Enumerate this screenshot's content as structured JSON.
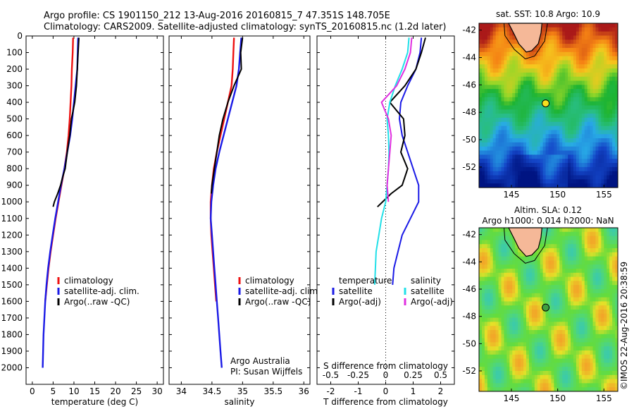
{
  "header": {
    "line1": "Argo profile: CS 1901150_212 13-Aug-2016 20160815_7 47.351S 148.705E",
    "line2": "Climatology: CARS2009. Satellite-adjusted climatology: synTS_20160815.nc (1.2d later)"
  },
  "colors": {
    "red": "#ee1111",
    "blue": "#1a1ae6",
    "black": "#000000",
    "cyan": "#22e0e8",
    "magenta": "#e030e0",
    "land": "#f5b898"
  },
  "chart_data": [
    {
      "type": "line",
      "name": "temperature",
      "xlabel": "temperature (deg C)",
      "ylabel": "",
      "xlim": [
        -1.5,
        31.5
      ],
      "ylim": [
        0,
        2100
      ],
      "xticks": [
        "0",
        "5",
        "10",
        "15",
        "20",
        "25",
        "30"
      ],
      "yticks": [
        "0",
        "100",
        "200",
        "300",
        "400",
        "500",
        "600",
        "700",
        "800",
        "900",
        "1000",
        "1100",
        "1200",
        "1300",
        "1400",
        "1500",
        "1600",
        "1700",
        "1800",
        "1900",
        "2000"
      ],
      "legend": [
        "climatology",
        "satellite-adj. clim.",
        "Argo(..raw -QC)"
      ],
      "series": [
        {
          "key": "climatology",
          "color": "red",
          "x": [
            9.8,
            9.7,
            9.5,
            9.4,
            9.2,
            9.0,
            8.7,
            8.3,
            7.7,
            7.0,
            6.3,
            5.6,
            5.0,
            4.4,
            3.9,
            3.5,
            3.1
          ],
          "y": [
            10,
            100,
            200,
            300,
            400,
            500,
            600,
            700,
            800,
            900,
            1000,
            1100,
            1200,
            1300,
            1400,
            1500,
            1600
          ]
        },
        {
          "key": "satellite",
          "color": "blue",
          "x": [
            11.0,
            10.9,
            10.8,
            10.4,
            10.0,
            9.6,
            9.1,
            8.4,
            7.7,
            6.9,
            6.2,
            5.5,
            4.9,
            4.3,
            3.8,
            3.4,
            3.1,
            2.9,
            2.7,
            2.6,
            2.5
          ],
          "y": [
            10,
            100,
            200,
            300,
            400,
            500,
            600,
            700,
            800,
            900,
            1000,
            1100,
            1200,
            1300,
            1400,
            1500,
            1600,
            1700,
            1800,
            1900,
            2000
          ]
        },
        {
          "key": "argo",
          "color": "black",
          "x": [
            11.2,
            11.0,
            10.8,
            10.6,
            10.2,
            9.8,
            9.4,
            9.0,
            8.4,
            7.9,
            7.3,
            6.8,
            6.1,
            5.3,
            5.0
          ],
          "y": [
            10,
            100,
            200,
            300,
            400,
            450,
            500,
            600,
            700,
            800,
            850,
            900,
            950,
            1000,
            1030
          ]
        }
      ]
    },
    {
      "type": "line",
      "name": "salinity",
      "xlabel": "salinity",
      "ylabel": "",
      "xlim": [
        33.8,
        36.1
      ],
      "ylim": [
        0,
        2100
      ],
      "xticks": [
        "34",
        "34.5",
        "35",
        "35.5",
        "36"
      ],
      "legend": [
        "climatology",
        "satellite-adj. clim.",
        "Argo(..raw -QC)"
      ],
      "annotation": [
        "Argo Australia",
        "PI: Susan Wijffels"
      ],
      "series": [
        {
          "key": "climatology",
          "color": "red",
          "x": [
            34.86,
            34.85,
            34.84,
            34.82,
            34.76,
            34.7,
            34.64,
            34.58,
            34.53,
            34.5,
            34.48,
            34.48,
            34.49,
            34.51,
            34.53,
            34.55,
            34.57
          ],
          "y": [
            10,
            100,
            200,
            300,
            400,
            500,
            600,
            700,
            800,
            900,
            1000,
            1100,
            1200,
            1300,
            1400,
            1500,
            1600
          ]
        },
        {
          "key": "satellite",
          "color": "blue",
          "x": [
            34.98,
            34.96,
            34.94,
            34.9,
            34.83,
            34.76,
            34.69,
            34.62,
            34.56,
            34.52,
            34.49,
            34.48,
            34.5,
            34.52,
            34.54,
            34.56,
            34.58,
            34.6,
            34.62,
            34.64,
            34.66
          ],
          "y": [
            10,
            100,
            200,
            300,
            400,
            500,
            600,
            700,
            800,
            900,
            1000,
            1100,
            1200,
            1300,
            1400,
            1500,
            1600,
            1700,
            1800,
            1900,
            2000
          ]
        },
        {
          "key": "argo",
          "color": "black",
          "x": [
            35.0,
            34.97,
            34.98,
            34.86,
            34.76,
            34.72,
            34.68,
            34.62,
            34.58,
            34.54,
            34.52,
            34.5,
            34.49
          ],
          "y": [
            10,
            100,
            200,
            300,
            400,
            450,
            500,
            600,
            700,
            800,
            850,
            900,
            950
          ]
        }
      ]
    },
    {
      "type": "line",
      "name": "difference",
      "xlabel": "T difference from climatology",
      "xlabel2": "S difference from climatology",
      "xlim": [
        -2.5,
        2.5
      ],
      "ylim": [
        0,
        2100
      ],
      "xticks": [
        "-2",
        "-1",
        "0",
        "1",
        "2"
      ],
      "xticks2": [
        "-0.5",
        "-0.25",
        "0",
        "0.25",
        "0.5"
      ],
      "legend_headers": [
        "temperature",
        "salinity"
      ],
      "legend": [
        "satellite",
        "Argo(-adj)",
        "satellite",
        "Argo(-adj)"
      ],
      "series": [
        {
          "key": "t_sat",
          "color": "blue",
          "x": [
            1.3,
            1.25,
            1.1,
            0.8,
            0.55,
            0.5,
            0.6,
            0.8,
            1.0,
            1.2,
            1.2,
            0.9,
            0.6,
            0.45,
            0.3,
            0.25
          ],
          "y": [
            10,
            100,
            200,
            300,
            400,
            500,
            600,
            700,
            800,
            900,
            1000,
            1100,
            1200,
            1300,
            1400,
            1500
          ]
        },
        {
          "key": "t_argo",
          "color": "black",
          "x": [
            1.45,
            1.3,
            1.1,
            0.7,
            0.15,
            0.4,
            0.65,
            0.7,
            0.55,
            0.8,
            0.7,
            0.6,
            0.2,
            -0.3
          ],
          "y": [
            10,
            100,
            200,
            300,
            400,
            450,
            500,
            600,
            700,
            800,
            850,
            900,
            950,
            1030
          ]
        },
        {
          "key": "s_sat",
          "color": "cyan",
          "x": [
            0.85,
            0.8,
            0.6,
            0.35,
            0.15,
            0.05,
            0.1,
            0.12,
            0.1,
            0.05,
            0.0,
            -0.15,
            -0.25,
            -0.35,
            -0.4
          ],
          "y": [
            10,
            100,
            200,
            300,
            400,
            500,
            600,
            700,
            800,
            900,
            1000,
            1100,
            1200,
            1300,
            1500
          ]
        },
        {
          "key": "s_argo",
          "color": "magenta",
          "x": [
            0.95,
            0.9,
            0.7,
            0.4,
            -0.15,
            0.1,
            0.2,
            0.15,
            0.1,
            0.05,
            0.1
          ],
          "y": [
            10,
            100,
            200,
            300,
            400,
            500,
            600,
            700,
            800,
            900,
            1000
          ]
        }
      ]
    },
    {
      "type": "heatmap",
      "name": "sst_map",
      "title": "sat. SST: 10.8 Argo: 10.9",
      "xlim": [
        141.5,
        156.5
      ],
      "ylim": [
        -53.5,
        -41.5
      ],
      "xticks": [
        "145",
        "150",
        "155"
      ],
      "yticks": [
        "-42",
        "-44",
        "-46",
        "-48",
        "-50",
        "-52"
      ],
      "marker": {
        "lon": 148.7,
        "lat": -47.35
      }
    },
    {
      "type": "heatmap",
      "name": "sla_map",
      "title": "Altim. SLA: 0.12",
      "subtitle": "Argo h1000: 0.014 h2000: NaN",
      "xlim": [
        141.5,
        156.5
      ],
      "ylim": [
        -53.5,
        -41.5
      ],
      "xticks": [
        "145",
        "150",
        "155"
      ],
      "yticks": [
        "-42",
        "-44",
        "-46",
        "-48",
        "-50",
        "-52"
      ],
      "marker": {
        "lon": 148.7,
        "lat": -47.35
      }
    }
  ],
  "credit": "©IMOS 22-Aug-2016 20:38:59"
}
